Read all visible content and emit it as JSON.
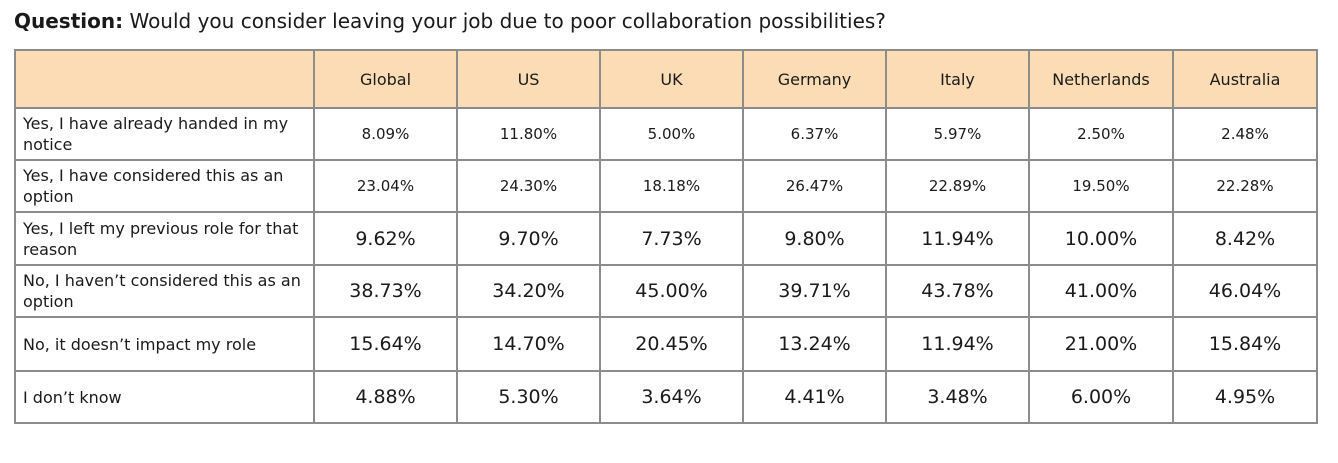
{
  "question": {
    "label": "Question:",
    "text": "Would you consider leaving your job due to poor collaboration possibilities?"
  },
  "table": {
    "columns": [
      "",
      "Global",
      "US",
      "UK",
      "Germany",
      "Italy",
      "Netherlands",
      "Australia"
    ],
    "rows": [
      {
        "label": "Yes, I have already handed in my notice",
        "values": [
          "8.09%",
          "11.80%",
          "5.00%",
          "6.37%",
          "5.97%",
          "2.50%",
          "2.48%"
        ]
      },
      {
        "label": "Yes, I have considered this as an option",
        "values": [
          "23.04%",
          "24.30%",
          "18.18%",
          "26.47%",
          "22.89%",
          "19.50%",
          "22.28%"
        ]
      },
      {
        "label": "Yes, I left my previous role for that reason",
        "values": [
          "9.62%",
          "9.70%",
          "7.73%",
          "9.80%",
          "11.94%",
          "10.00%",
          "8.42%"
        ]
      },
      {
        "label": "No, I haven’t considered this as an option",
        "values": [
          "38.73%",
          "34.20%",
          "45.00%",
          "39.71%",
          "43.78%",
          "41.00%",
          "46.04%"
        ]
      },
      {
        "label": "No, it doesn’t impact my role",
        "values": [
          "15.64%",
          "14.70%",
          "20.45%",
          "13.24%",
          "11.94%",
          "21.00%",
          "15.84%"
        ]
      },
      {
        "label": "I don’t know",
        "values": [
          "4.88%",
          "5.30%",
          "3.64%",
          "4.41%",
          "3.48%",
          "6.00%",
          "4.95%"
        ]
      }
    ]
  },
  "colors": {
    "header_background": "#fcdcb5",
    "border": "#8c8c8c",
    "text": "#1a1a1a"
  }
}
